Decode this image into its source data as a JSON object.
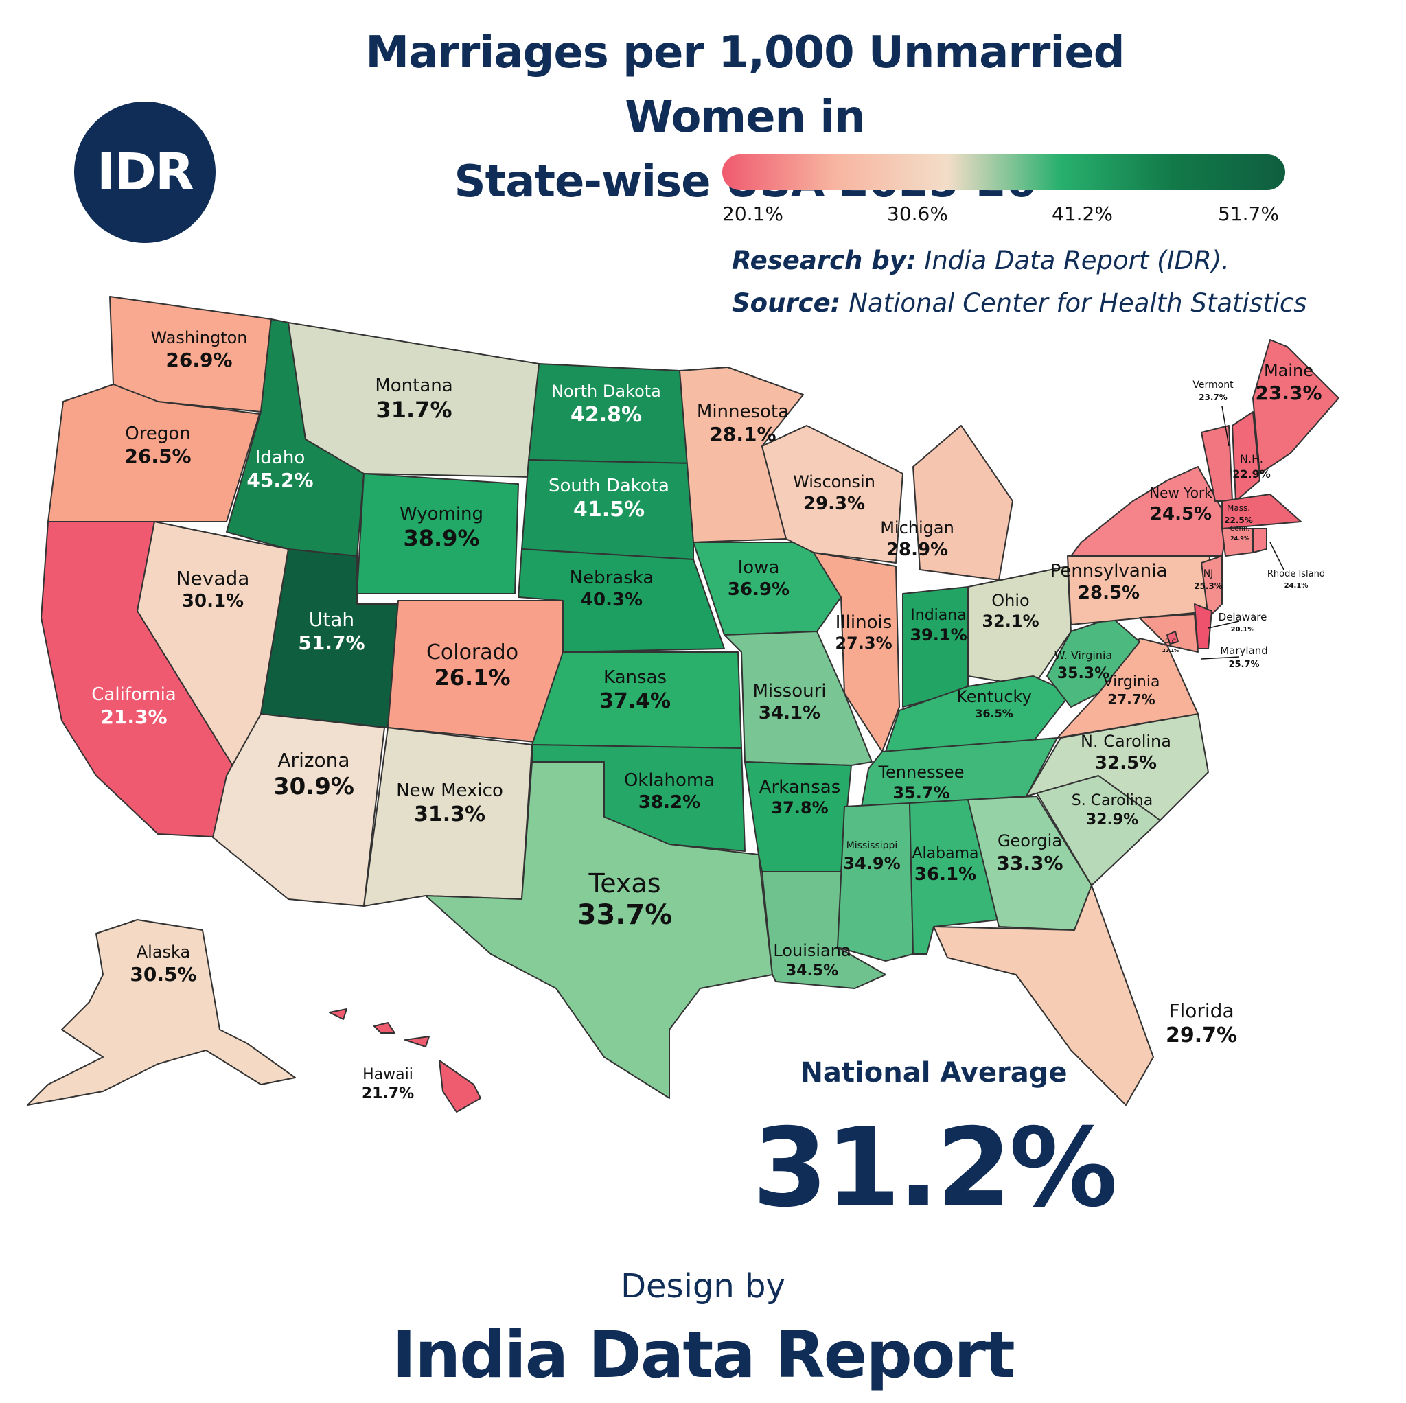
{
  "title_line1": "Marriages per 1,000 Unmarried Women in",
  "title_line2": "State-wise USA 2025-26",
  "logo_text": "IDR",
  "legend": {
    "ticks": [
      "20.1%",
      "30.6%",
      "41.2%",
      "51.7%"
    ],
    "colors": [
      "#ef5a6f",
      "#f7b5a0",
      "#f3ddc8",
      "#28b06e",
      "#127a49",
      "#0f5e3f"
    ]
  },
  "research_label": "Research by:",
  "research_value": "India Data Report (IDR).",
  "source_label": "Source:",
  "source_value": "National Center for Health Statistics",
  "national_average_label": "National Average",
  "national_average_value": "31.2%",
  "design_by": "Design by",
  "brand": "India Data Report",
  "states": [
    {
      "id": "washington",
      "name": "Washington",
      "value": "26.9%",
      "color": "#f8a98f"
    },
    {
      "id": "oregon",
      "name": "Oregon",
      "value": "26.5%",
      "color": "#f8a48b"
    },
    {
      "id": "california",
      "name": "California",
      "value": "21.3%",
      "color": "#ef5a70"
    },
    {
      "id": "nevada",
      "name": "Nevada",
      "value": "30.1%",
      "color": "#f4d6c2"
    },
    {
      "id": "idaho",
      "name": "Idaho",
      "value": "45.2%",
      "color": "#178651"
    },
    {
      "id": "montana",
      "name": "Montana",
      "value": "31.7%",
      "color": "#d7dcc6"
    },
    {
      "id": "wyoming",
      "name": "Wyoming",
      "value": "38.9%",
      "color": "#22a867"
    },
    {
      "id": "utah",
      "name": "Utah",
      "value": "51.7%",
      "color": "#0f5e3f"
    },
    {
      "id": "arizona",
      "name": "Arizona",
      "value": "30.9%",
      "color": "#f1e0cf"
    },
    {
      "id": "colorado",
      "name": "Colorado",
      "value": "26.1%",
      "color": "#f8a089"
    },
    {
      "id": "new-mexico",
      "name": "New Mexico",
      "value": "31.3%",
      "color": "#e4dfca"
    },
    {
      "id": "north-dakota",
      "name": "North Dakota",
      "value": "42.8%",
      "color": "#199159"
    },
    {
      "id": "south-dakota",
      "name": "South Dakota",
      "value": "41.5%",
      "color": "#1b975d"
    },
    {
      "id": "nebraska",
      "name": "Nebraska",
      "value": "40.3%",
      "color": "#1d9f61"
    },
    {
      "id": "kansas",
      "name": "Kansas",
      "value": "37.4%",
      "color": "#2bb06c"
    },
    {
      "id": "oklahoma",
      "name": "Oklahoma",
      "value": "38.2%",
      "color": "#25a867"
    },
    {
      "id": "texas",
      "name": "Texas",
      "value": "33.7%",
      "color": "#86cc99"
    },
    {
      "id": "minnesota",
      "name": "Minnesota",
      "value": "28.1%",
      "color": "#f7bca4"
    },
    {
      "id": "iowa",
      "name": "Iowa",
      "value": "36.9%",
      "color": "#31b372"
    },
    {
      "id": "missouri",
      "name": "Missouri",
      "value": "34.1%",
      "color": "#79c594"
    },
    {
      "id": "arkansas",
      "name": "Arkansas",
      "value": "37.8%",
      "color": "#27ab69"
    },
    {
      "id": "louisiana",
      "name": "Louisiana",
      "value": "34.5%",
      "color": "#6fc18e"
    },
    {
      "id": "wisconsin",
      "name": "Wisconsin",
      "value": "29.3%",
      "color": "#f6cdb8"
    },
    {
      "id": "illinois",
      "name": "Illinois",
      "value": "27.3%",
      "color": "#f8aa90"
    },
    {
      "id": "michigan",
      "name": "Michigan",
      "value": "28.9%",
      "color": "#f6c5b0"
    },
    {
      "id": "indiana",
      "name": "Indiana",
      "value": "39.1%",
      "color": "#22a465"
    },
    {
      "id": "ohio",
      "name": "Ohio",
      "value": "32.1%",
      "color": "#d6ddc3"
    },
    {
      "id": "kentucky",
      "name": "Kentucky",
      "value": "36.5%",
      "color": "#33b574"
    },
    {
      "id": "tennessee",
      "name": "Tennessee",
      "value": "35.7%",
      "color": "#3fb87a"
    },
    {
      "id": "mississippi",
      "name": "Mississippi",
      "value": "34.9%",
      "color": "#56bd84"
    },
    {
      "id": "alabama",
      "name": "Alabama",
      "value": "36.1%",
      "color": "#37b676"
    },
    {
      "id": "georgia",
      "name": "Georgia",
      "value": "33.3%",
      "color": "#95d2a5"
    },
    {
      "id": "florida",
      "name": "Florida",
      "value": "29.7%",
      "color": "#f6cdb4"
    },
    {
      "id": "south-carolina",
      "name": "S. Carolina",
      "value": "32.9%",
      "color": "#b8d9b7"
    },
    {
      "id": "north-carolina",
      "name": "N. Carolina",
      "value": "32.5%",
      "color": "#c6dcbf"
    },
    {
      "id": "virginia",
      "name": "Virginia",
      "value": "27.7%",
      "color": "#f8b29a"
    },
    {
      "id": "west-virginia",
      "name": "W. Virginia",
      "value": "35.3%",
      "color": "#4cba7f"
    },
    {
      "id": "pennsylvania",
      "name": "Pennsylvania",
      "value": "28.5%",
      "color": "#f7c0a9"
    },
    {
      "id": "new-york",
      "name": "New York",
      "value": "24.5%",
      "color": "#f4838a"
    },
    {
      "id": "maine",
      "name": "Maine",
      "value": "23.3%",
      "color": "#f2707c"
    },
    {
      "id": "vermont",
      "name": "Vermont",
      "value": "23.7%",
      "color": "#f27680"
    },
    {
      "id": "new-hampshire",
      "name": "N.H.",
      "value": "22.9%",
      "color": "#f16878"
    },
    {
      "id": "massachusetts",
      "name": "Mass.",
      "value": "22.5%",
      "color": "#f06575"
    },
    {
      "id": "connecticut",
      "name": "Conn.",
      "value": "24.9%",
      "color": "#f48a8c"
    },
    {
      "id": "rhode-island",
      "name": "Rhode Island",
      "value": "24.1%",
      "color": "#f47d86"
    },
    {
      "id": "new-jersey",
      "name": "NJ",
      "value": "25.3%",
      "color": "#f58f8e"
    },
    {
      "id": "delaware",
      "name": "Delaware",
      "value": "20.1%",
      "color": "#ee526c"
    },
    {
      "id": "maryland",
      "name": "Maryland",
      "value": "25.7%",
      "color": "#f69a8d"
    },
    {
      "id": "dc",
      "name": "D.C",
      "value": "22.1%",
      "color": "#f06376"
    },
    {
      "id": "alaska",
      "name": "Alaska",
      "value": "30.5%",
      "color": "#f4dac5"
    },
    {
      "id": "hawaii",
      "name": "Hawaii",
      "value": "21.7%",
      "color": "#ef5c70"
    }
  ]
}
